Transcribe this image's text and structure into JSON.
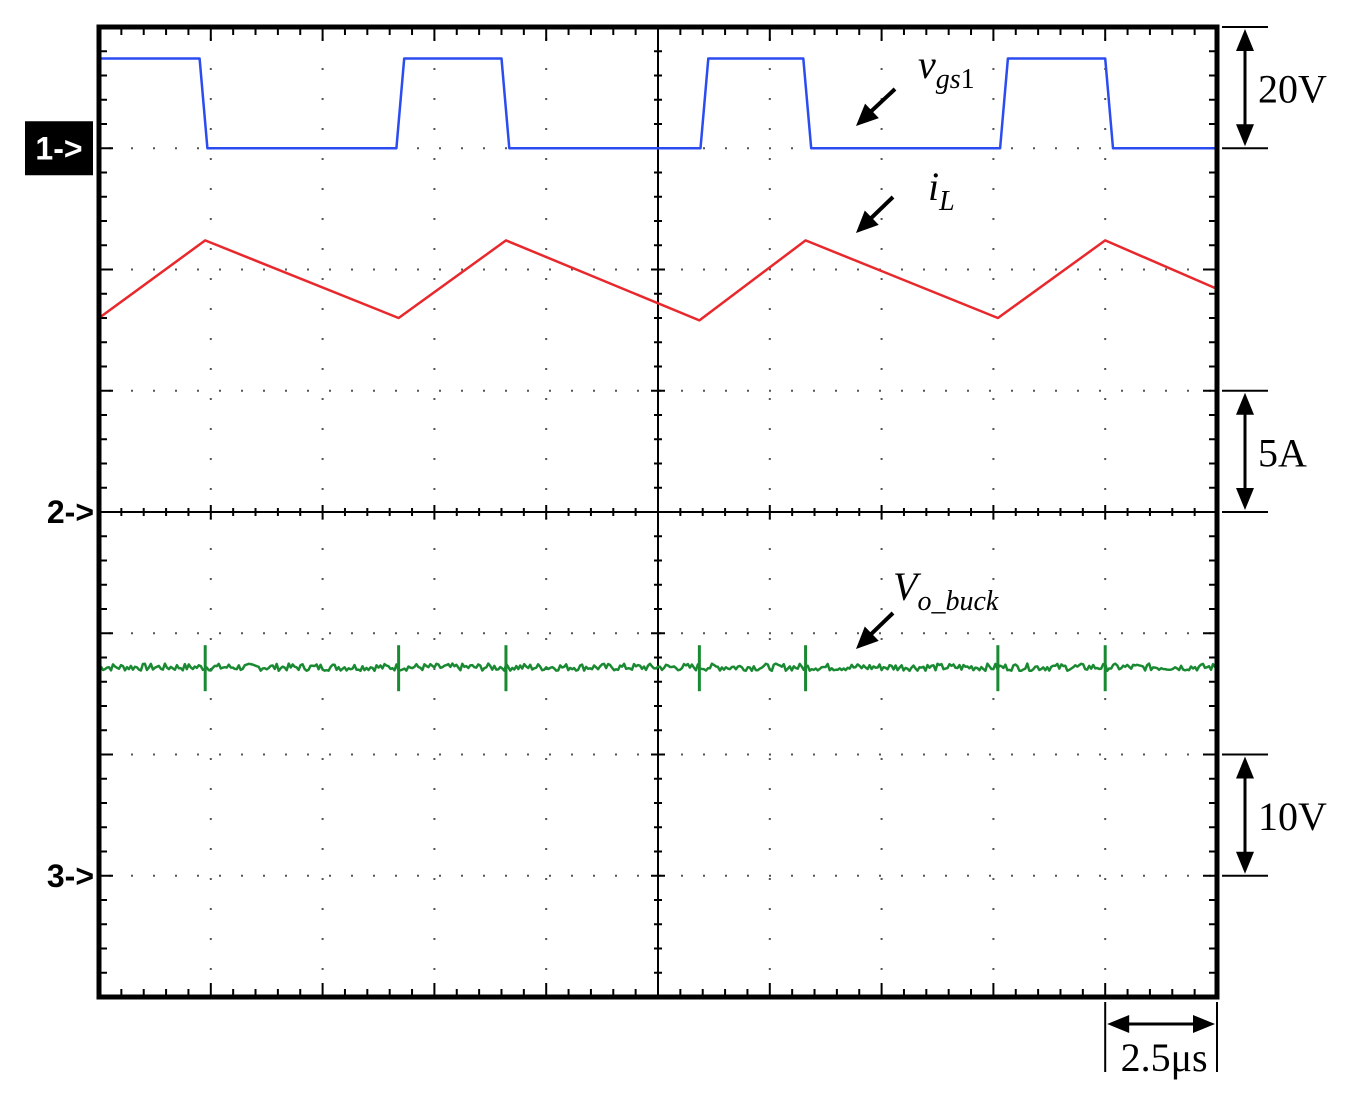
{
  "chart_data": {
    "type": "line",
    "title": "",
    "grid": true,
    "divisions": {
      "x": 10,
      "y": 8
    },
    "time_per_division_us": 2.5,
    "channels": [
      {
        "id": "1",
        "marker": "1->",
        "marker_style": "filled"
      },
      {
        "id": "2",
        "marker": "2->",
        "marker_style": "plain"
      },
      {
        "id": "3",
        "marker": "3->",
        "marker_style": "plain"
      }
    ],
    "series": [
      {
        "name": "v_gs1",
        "label": {
          "main": "v",
          "sub": "gs",
          "tail": "1"
        },
        "color": "#2b4cf0",
        "channel": "1",
        "scale_label": "20V",
        "x": [
          0,
          0.9,
          0.97,
          2.66,
          2.73,
          3.6,
          3.67,
          5.38,
          5.45,
          6.3,
          6.37,
          8.06,
          8.13,
          9.0,
          9.07,
          10.0
        ],
        "y_div": [
          0.74,
          0.74,
          0,
          0,
          0.74,
          0.74,
          0,
          0,
          0.74,
          0.74,
          0,
          0,
          0.74,
          0.74,
          0,
          0
        ]
      },
      {
        "name": "i_L",
        "label": {
          "main": "i",
          "sub": "L",
          "tail": ""
        },
        "color": "#e8282c",
        "channel": "2",
        "scale_label": "5A",
        "x": [
          0,
          0.95,
          2.68,
          3.64,
          5.37,
          6.32,
          8.04,
          9.0,
          10.0
        ],
        "y_div": [
          1.6,
          2.24,
          1.6,
          2.24,
          1.58,
          2.24,
          1.6,
          2.24,
          1.84
        ]
      },
      {
        "name": "V_o_buck",
        "label": {
          "main": "V",
          "sub": "o_buck",
          "tail": ""
        },
        "color": "#1a8a32",
        "channel": "3",
        "scale_label": "10V",
        "level_div": 1.72,
        "spikes_x": [
          0.95,
          2.68,
          3.64,
          5.37,
          6.32,
          8.04,
          9.0
        ],
        "noise_div": 0.03
      }
    ],
    "time_scale_label": "2.5μs"
  }
}
